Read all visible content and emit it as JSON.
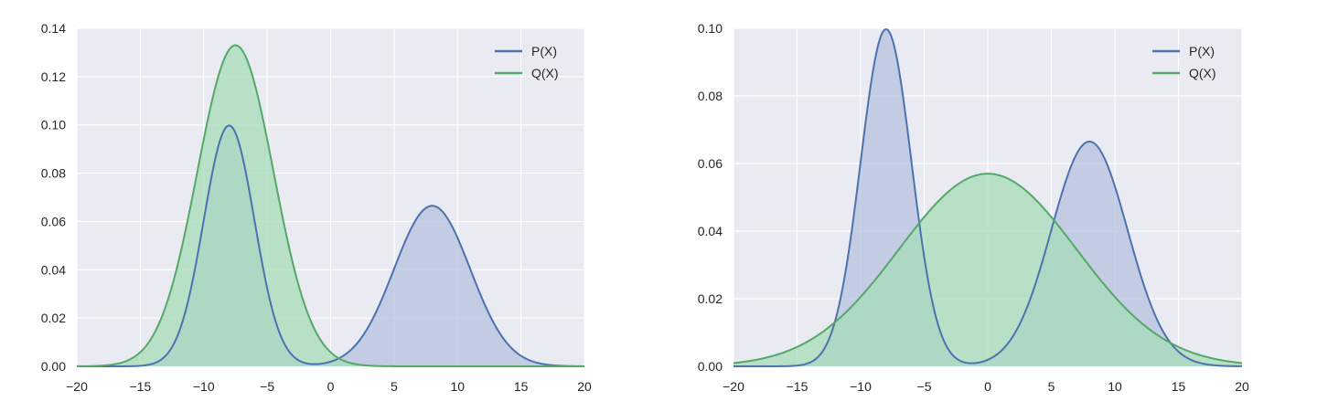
{
  "chart_data": [
    {
      "type": "area",
      "title": "",
      "xlabel": "",
      "ylabel": "",
      "xlim": [
        -20,
        20
      ],
      "ylim": [
        0,
        0.14
      ],
      "x_ticks": [
        -20,
        -15,
        -10,
        -5,
        0,
        5,
        10,
        15,
        20
      ],
      "x_tick_labels": [
        "−20",
        "−15",
        "−10",
        "−5",
        "0",
        "5",
        "10",
        "15",
        "20"
      ],
      "y_ticks": [
        0,
        0.02,
        0.04,
        0.06,
        0.08,
        0.1,
        0.12,
        0.14
      ],
      "y_tick_labels": [
        "0.00",
        "0.02",
        "0.04",
        "0.06",
        "0.08",
        "0.10",
        "0.12",
        "0.14"
      ],
      "grid": true,
      "legend_position": "top-right",
      "background": "#eaeaf2",
      "series": [
        {
          "name": "P(X)",
          "color": "#4c72b0",
          "fill": "#b5c1de",
          "kind": "gaussian-mixture",
          "components": [
            {
              "weight": 0.5,
              "mean": -8,
              "sd": 2
            },
            {
              "weight": 0.5,
              "mean": 8,
              "sd": 3
            }
          ],
          "peaks": [
            {
              "x": -8,
              "y": 0.1
            },
            {
              "x": 8,
              "y": 0.0665
            }
          ]
        },
        {
          "name": "Q(X)",
          "color": "#55a868",
          "fill": "#a6dcb8",
          "kind": "gaussian-mixture",
          "components": [
            {
              "weight": 1.0,
              "mean": -7.5,
              "sd": 3
            }
          ],
          "peaks": [
            {
              "x": -7.5,
              "y": 0.133
            }
          ]
        }
      ]
    },
    {
      "type": "area",
      "title": "",
      "xlabel": "",
      "ylabel": "",
      "xlim": [
        -20,
        20
      ],
      "ylim": [
        0,
        0.1
      ],
      "x_ticks": [
        -20,
        -15,
        -10,
        -5,
        0,
        5,
        10,
        15,
        20
      ],
      "x_tick_labels": [
        "−20",
        "−15",
        "−10",
        "−5",
        "0",
        "5",
        "10",
        "15",
        "20"
      ],
      "y_ticks": [
        0,
        0.02,
        0.04,
        0.06,
        0.08,
        0.1
      ],
      "y_tick_labels": [
        "0.00",
        "0.02",
        "0.04",
        "0.06",
        "0.08",
        "0.10"
      ],
      "grid": true,
      "legend_position": "top-right",
      "background": "#eaeaf2",
      "series": [
        {
          "name": "P(X)",
          "color": "#4c72b0",
          "fill": "#b5c1de",
          "kind": "gaussian-mixture",
          "components": [
            {
              "weight": 0.5,
              "mean": -8,
              "sd": 2
            },
            {
              "weight": 0.5,
              "mean": 8,
              "sd": 3
            }
          ],
          "peaks": [
            {
              "x": -8,
              "y": 0.1
            },
            {
              "x": 8,
              "y": 0.0665
            }
          ]
        },
        {
          "name": "Q(X)",
          "color": "#55a868",
          "fill": "#a6dcb8",
          "kind": "gaussian-mixture",
          "components": [
            {
              "weight": 1.0,
              "mean": 0,
              "sd": 7
            }
          ],
          "peaks": [
            {
              "x": 0,
              "y": 0.057
            }
          ]
        }
      ]
    }
  ]
}
